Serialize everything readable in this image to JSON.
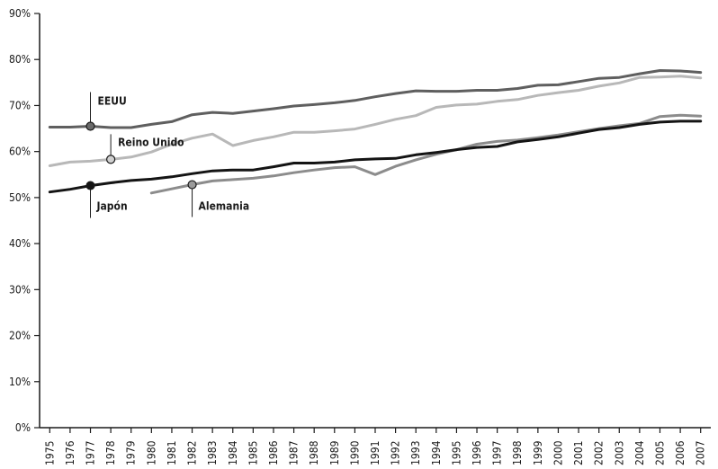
{
  "chart_data": {
    "type": "line",
    "title": "",
    "xlabel": "",
    "ylabel": "",
    "ylim": [
      0,
      90
    ],
    "x": [
      "1975",
      "1976",
      "1977",
      "1978",
      "1979",
      "1980",
      "1981",
      "1982",
      "1983",
      "1984",
      "1985",
      "1986",
      "1987",
      "1988",
      "1989",
      "1990",
      "1991",
      "1992",
      "1993",
      "1994",
      "1995",
      "1996",
      "1997",
      "1998",
      "1999",
      "2000",
      "2001",
      "2002",
      "2003",
      "2004",
      "2005",
      "2006",
      "2007"
    ],
    "ytick_labels": [
      "0%",
      "10%",
      "20%",
      "30%",
      "40%",
      "50%",
      "60%",
      "70%",
      "80%",
      "90%"
    ],
    "grid": false,
    "legend": "none",
    "series": [
      {
        "name": "EEUU",
        "color": "#5f5f5f",
        "marker_year": "1977",
        "marker_color": "#6a6a6a",
        "values": [
          65.3,
          65.3,
          65.5,
          65.2,
          65.2,
          65.9,
          66.5,
          68.0,
          68.5,
          68.3,
          68.8,
          69.3,
          69.9,
          70.2,
          70.6,
          71.1,
          71.9,
          72.6,
          73.2,
          73.1,
          73.1,
          73.3,
          73.3,
          73.7,
          74.4,
          74.5,
          75.2,
          75.9,
          76.1,
          76.9,
          77.6,
          77.5,
          77.2
        ]
      },
      {
        "name": "Reino Unido",
        "color": "#b8b8b8",
        "marker_year": "1978",
        "marker_color": "#d0d0d0",
        "values": [
          56.9,
          57.7,
          57.9,
          58.3,
          58.8,
          59.9,
          61.6,
          62.9,
          63.8,
          61.3,
          62.4,
          63.2,
          64.2,
          64.2,
          64.5,
          64.9,
          65.9,
          67.0,
          67.8,
          69.6,
          70.1,
          70.3,
          70.9,
          71.3,
          72.2,
          72.8,
          73.3,
          74.2,
          74.9,
          76.1,
          76.2,
          76.4,
          76.0
        ]
      },
      {
        "name": "Japón",
        "color": "#141414",
        "marker_year": "1977",
        "marker_color": "#141414",
        "values": [
          51.2,
          51.8,
          52.6,
          53.2,
          53.7,
          54.0,
          54.5,
          55.2,
          55.8,
          56.0,
          56.0,
          56.7,
          57.5,
          57.5,
          57.7,
          58.2,
          58.4,
          58.5,
          59.3,
          59.8,
          60.4,
          60.9,
          61.1,
          62.1,
          62.6,
          63.2,
          64.0,
          64.8,
          65.2,
          65.9,
          66.4,
          66.6,
          66.6
        ]
      },
      {
        "name": "Alemania",
        "color": "#8c8c8c",
        "marker_year": "1982",
        "marker_color": "#9a9a9a",
        "values": [
          null,
          null,
          null,
          null,
          null,
          51.0,
          51.9,
          52.8,
          53.6,
          53.9,
          54.2,
          54.7,
          55.4,
          56.0,
          56.5,
          56.7,
          55.0,
          56.8,
          58.2,
          59.4,
          60.4,
          61.6,
          62.2,
          62.5,
          63.0,
          63.6,
          64.3,
          65.0,
          65.6,
          66.1,
          67.6,
          67.9,
          67.7
        ]
      }
    ]
  }
}
